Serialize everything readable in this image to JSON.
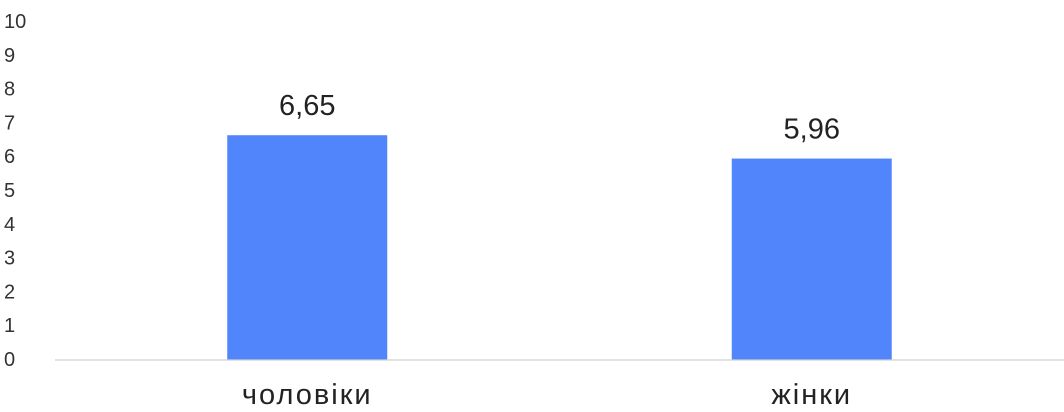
{
  "chart_data": {
    "type": "bar",
    "categories": [
      "чоловіки",
      "жінки"
    ],
    "values": [
      6.65,
      5.96
    ],
    "data_labels": [
      "6,65",
      "5,96"
    ],
    "ylim": [
      0,
      10
    ],
    "yticks": [
      "0",
      "1",
      "2",
      "3",
      "4",
      "5",
      "6",
      "7",
      "8",
      "9",
      "10"
    ],
    "title": "",
    "xlabel": "",
    "ylabel": "",
    "grid": false,
    "legend": "none",
    "bar_color": "#5185fb"
  }
}
